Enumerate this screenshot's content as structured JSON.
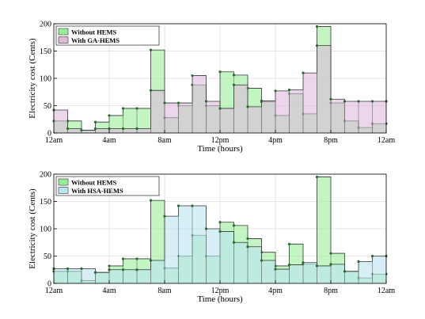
{
  "chart_data": [
    {
      "type": "area",
      "step": true,
      "xlabel": "Time (hours)",
      "ylabel": "Electricity cost (Cents)",
      "ylim": [
        0,
        200
      ],
      "xlim": [
        0,
        24
      ],
      "yticks": [
        0,
        50,
        100,
        150,
        200
      ],
      "xtick_labels": [
        "12am",
        "4am",
        "8am",
        "12pm",
        "4pm",
        "8pm",
        "12am"
      ],
      "grid": true,
      "legend_position": "top-left",
      "hours": [
        0,
        1,
        2,
        3,
        4,
        5,
        6,
        7,
        8,
        9,
        10,
        11,
        12,
        13,
        14,
        15,
        16,
        17,
        18,
        19,
        20,
        21,
        22,
        23
      ],
      "series": [
        {
          "name": "Without HEMS",
          "color": "#99ee99",
          "values": [
            22,
            22,
            5,
            20,
            32,
            45,
            45,
            152,
            28,
            50,
            88,
            50,
            112,
            106,
            82,
            57,
            32,
            72,
            35,
            195,
            55,
            22,
            10,
            17
          ]
        },
        {
          "name": "With GA-HEMS",
          "color": "#ddbbdd",
          "values": [
            42,
            8,
            5,
            8,
            8,
            8,
            8,
            78,
            55,
            55,
            105,
            58,
            45,
            88,
            48,
            59,
            77,
            79,
            110,
            160,
            62,
            58,
            58,
            58
          ]
        }
      ]
    },
    {
      "type": "area",
      "step": true,
      "xlabel": "Time (hours)",
      "ylabel": "Electricity cost (Cents)",
      "ylim": [
        0,
        200
      ],
      "xlim": [
        0,
        24
      ],
      "yticks": [
        0,
        50,
        100,
        150,
        200
      ],
      "xtick_labels": [
        "12am",
        "4am",
        "8am",
        "12pm",
        "4pm",
        "8pm",
        "12am"
      ],
      "grid": true,
      "legend_position": "top-left",
      "hours": [
        0,
        1,
        2,
        3,
        4,
        5,
        6,
        7,
        8,
        9,
        10,
        11,
        12,
        13,
        14,
        15,
        16,
        17,
        18,
        19,
        20,
        21,
        22,
        23
      ],
      "series": [
        {
          "name": "Without HEMS",
          "color": "#99ee99",
          "values": [
            22,
            22,
            5,
            20,
            32,
            45,
            45,
            152,
            28,
            50,
            88,
            50,
            112,
            106,
            82,
            57,
            32,
            72,
            35,
            195,
            55,
            22,
            10,
            17
          ]
        },
        {
          "name": "With HSA-HEMS",
          "color": "#bbe4f2",
          "values": [
            27,
            27,
            27,
            20,
            25,
            25,
            25,
            42,
            123,
            142,
            142,
            100,
            95,
            75,
            67,
            42,
            26,
            34,
            38,
            32,
            35,
            22,
            40,
            50
          ]
        }
      ]
    }
  ]
}
